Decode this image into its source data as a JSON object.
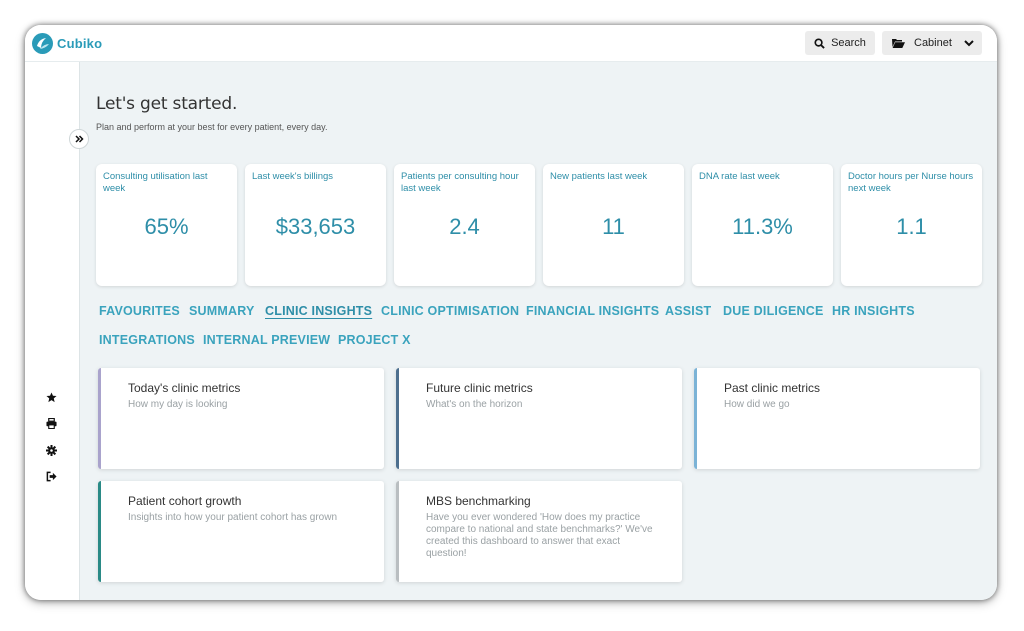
{
  "app": {
    "name": "Cubiko"
  },
  "header": {
    "search_label": "Search",
    "cabinet_label": "Cabinet"
  },
  "sidebar": {
    "icons": [
      "star-icon",
      "printer-icon",
      "gear-icon",
      "logout-icon"
    ]
  },
  "page": {
    "title": "Let's get started.",
    "subtitle": "Plan and perform at your best for every patient, every day."
  },
  "kpis": [
    {
      "label": "Consulting utilisation last week",
      "value": "65%"
    },
    {
      "label": "Last week's billings",
      "value": "$33,653"
    },
    {
      "label": "Patients per consulting hour last week",
      "value": "2.4"
    },
    {
      "label": "New patients last week",
      "value": "11"
    },
    {
      "label": "DNA rate last week",
      "value": "11.3%"
    },
    {
      "label": "Doctor hours per Nurse hours next week",
      "value": "1.1"
    }
  ],
  "tabs": [
    {
      "label": "FAVOURITES"
    },
    {
      "label": "SUMMARY"
    },
    {
      "label": "CLINIC INSIGHTS",
      "active": true
    },
    {
      "label": "CLINIC OPTIMISATION"
    },
    {
      "label": "FINANCIAL INSIGHTS"
    },
    {
      "label": "ASSIST"
    },
    {
      "label": "DUE DILIGENCE"
    },
    {
      "label": "HR INSIGHTS"
    },
    {
      "label": "INTEGRATIONS"
    },
    {
      "label": "INTERNAL PREVIEW"
    },
    {
      "label": "PROJECT X"
    }
  ],
  "cards": [
    {
      "title": "Today's clinic metrics",
      "description": "How my day is looking",
      "accent": "#a9a3cc"
    },
    {
      "title": "Future clinic metrics",
      "description": "What's on the horizon",
      "accent": "#4d6f8e"
    },
    {
      "title": "Past clinic metrics",
      "description": "How did we go",
      "accent": "#7bb3d6"
    },
    {
      "title": "Patient cohort growth",
      "description": "Insights into how your patient cohort has grown",
      "accent": "#2a8a86"
    },
    {
      "title": "MBS benchmarking",
      "description": "Have you ever wondered 'How does my practice compare to national and state benchmarks?' We've created this dashboard to answer that exact question!",
      "accent": "#b9bec1"
    }
  ],
  "colors": {
    "brand": "#2a9bb8",
    "background": "#eef3f5",
    "kpi_text": "#2e8ea8"
  }
}
